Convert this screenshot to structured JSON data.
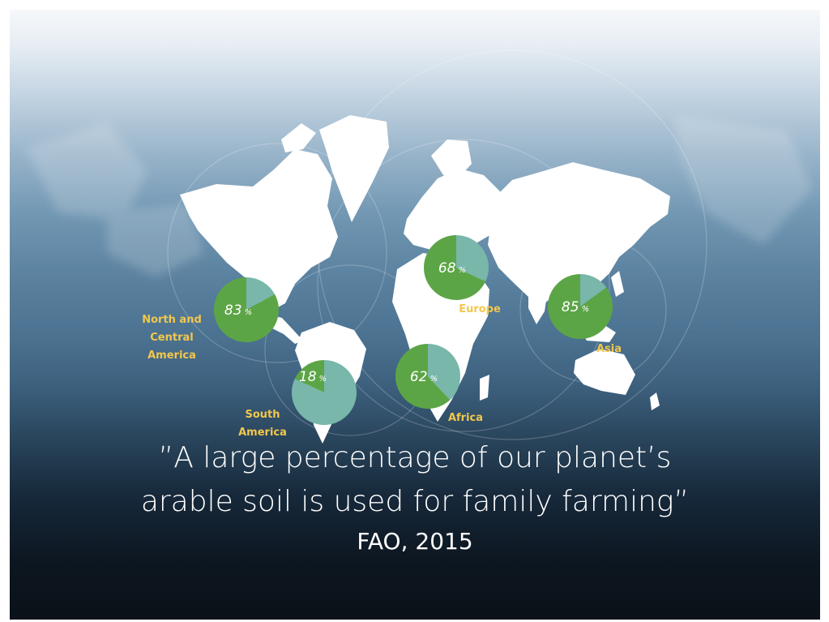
{
  "colors": {
    "family_farming": "#5ca546",
    "other": "#78b7aa",
    "region_label": "#f2c74c",
    "text": "#ffffff"
  },
  "chart_data": {
    "type": "pie",
    "series": [
      {
        "name": "North and\nCentral\nAmerica",
        "value": 83,
        "value_label": "83",
        "unit": "%"
      },
      {
        "name": "South\nAmerica",
        "value": 18,
        "value_label": "18",
        "unit": "%"
      },
      {
        "name": "Europe",
        "value": 68,
        "value_label": "68",
        "unit": "%"
      },
      {
        "name": "Africa",
        "value": 62,
        "value_label": "62",
        "unit": "%"
      },
      {
        "name": "Asia",
        "value": 85,
        "value_label": "85",
        "unit": "%"
      }
    ]
  },
  "quote": {
    "line1": "”A large percentage of our planet’s",
    "line2": "arable soil is used for family farming”",
    "source": "FAO, 2015"
  }
}
